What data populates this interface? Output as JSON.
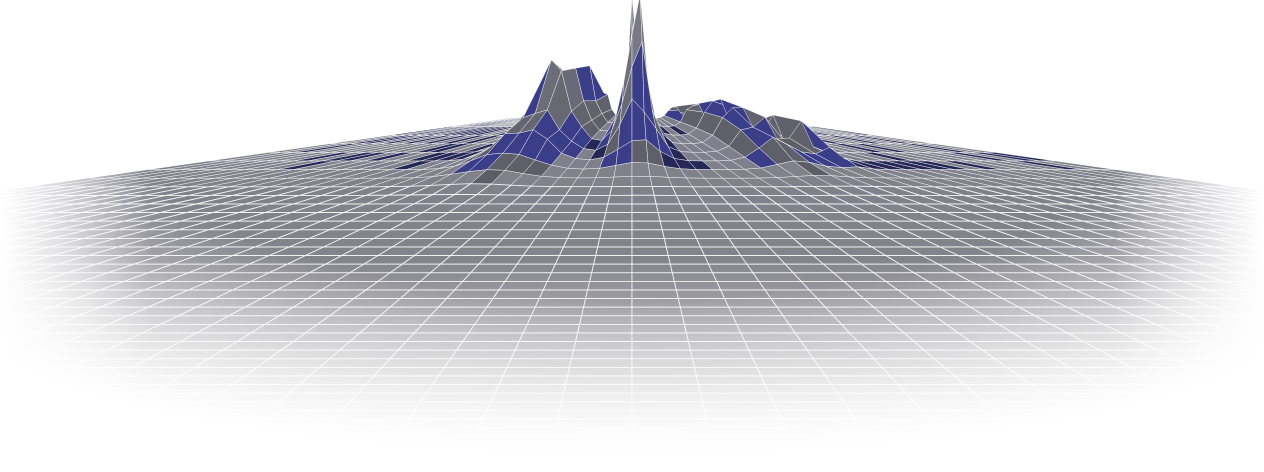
{
  "scene": {
    "description_hidden": "",
    "palette": {
      "background": "#ffffff",
      "terrain_dark": "#5c5c66",
      "terrain_mid": "#7f7f8c",
      "terrain_accent": "#6a6ef5",
      "grid_line": "#ffffff",
      "floor_tone": "#8a8a8a"
    },
    "terrain": {
      "grid_columns": 60,
      "grid_rows": 40,
      "peaks": [
        {
          "name": "left-range",
          "height": 0.55
        },
        {
          "name": "center-peak",
          "height": 1.0
        },
        {
          "name": "right-range",
          "height": 0.35
        },
        {
          "name": "far-right-hill",
          "height": 0.22
        }
      ]
    }
  }
}
